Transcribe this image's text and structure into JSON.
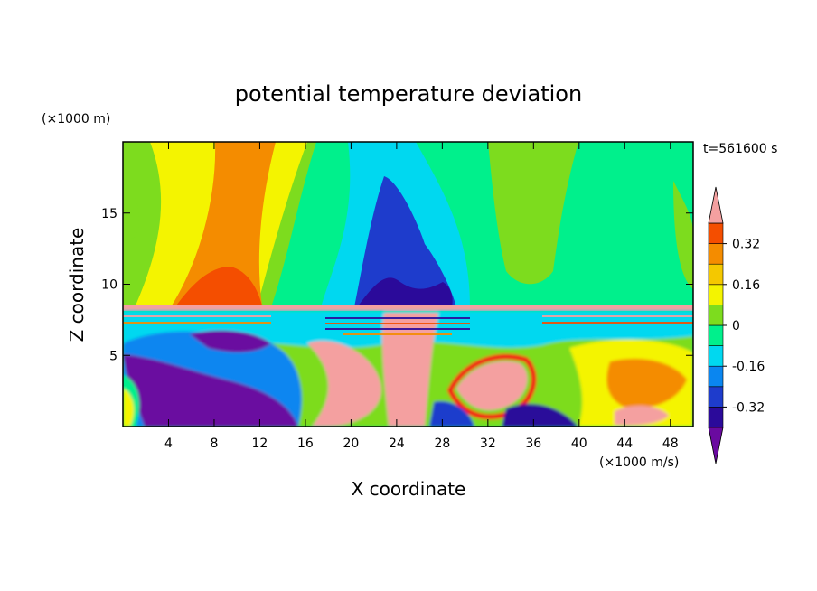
{
  "chart_data": {
    "type": "heatmap",
    "title": "potential temperature deviation",
    "xlabel": "X coordinate",
    "ylabel": "Z coordinate",
    "x_unit": "(×1000 m/s)",
    "y_unit": "(×1000 m)",
    "time_label": "t=561600 s",
    "xlim": [
      0,
      50
    ],
    "ylim": [
      0,
      20
    ],
    "x_ticks": [
      4,
      8,
      12,
      16,
      20,
      24,
      28,
      32,
      36,
      40,
      44,
      48
    ],
    "y_ticks": [
      5,
      10,
      15
    ],
    "colorbar": {
      "levels": [
        -0.4,
        -0.32,
        -0.24,
        -0.16,
        -0.08,
        0,
        0.08,
        0.16,
        0.24,
        0.32,
        0.4
      ],
      "tick_labels": [
        "0.32",
        "0.16",
        "0",
        "-0.16",
        "-0.32"
      ],
      "tick_values": [
        0.32,
        0.16,
        0,
        -0.16,
        -0.32
      ],
      "extend": "both",
      "colors": [
        "#6a0aa0",
        "#2b0a9a",
        "#1e3ccc",
        "#0a86f0",
        "#00d8f0",
        "#00f08c",
        "#7ddc1e",
        "#f4f400",
        "#f4c800",
        "#f48c00",
        "#f44e00",
        "#f41414",
        "#f4a0a0"
      ]
    }
  }
}
